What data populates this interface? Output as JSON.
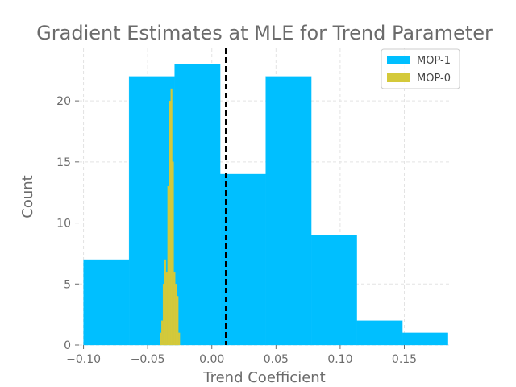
{
  "chart_data": {
    "type": "bar",
    "title": "Gradient Estimates at MLE for Trend Parameter",
    "xlabel": "Trend Coefficient",
    "ylabel": "Count",
    "xlim": [
      -0.1035,
      0.1855
    ],
    "ylim": [
      0,
      24.3
    ],
    "xticks": [
      -0.1,
      -0.05,
      0.0,
      0.05,
      0.1,
      0.15
    ],
    "xtick_labels": [
      "−0.10",
      "−0.05",
      "0.00",
      "0.05",
      "0.10",
      "0.15"
    ],
    "yticks": [
      0,
      5,
      10,
      15,
      20
    ],
    "ytick_labels": [
      "0",
      "5",
      "10",
      "15",
      "20"
    ],
    "grid": true,
    "legend_position": "top-right",
    "reference_line": {
      "x": 0.011,
      "style": "dashed",
      "color": "#000000"
    },
    "series": [
      {
        "name": "MOP-1",
        "color": "#00bfff",
        "bin_edges": [
          -0.1,
          -0.0645,
          -0.029,
          0.0065,
          0.042,
          0.0775,
          0.113,
          0.1485,
          0.184
        ],
        "counts": [
          7,
          22,
          23,
          14,
          22,
          9,
          2,
          1
        ]
      },
      {
        "name": "MOP-0",
        "color": "#d4c93a",
        "bin_edges": [
          -0.0405,
          -0.0393,
          -0.0381,
          -0.0369,
          -0.0357,
          -0.0345,
          -0.0333,
          -0.0321,
          -0.0309,
          -0.0297,
          -0.0285,
          -0.0273,
          -0.0261,
          -0.0249
        ],
        "counts": [
          1,
          2,
          5,
          7,
          6,
          13,
          20,
          21,
          15,
          6,
          5,
          4,
          1
        ]
      }
    ]
  }
}
